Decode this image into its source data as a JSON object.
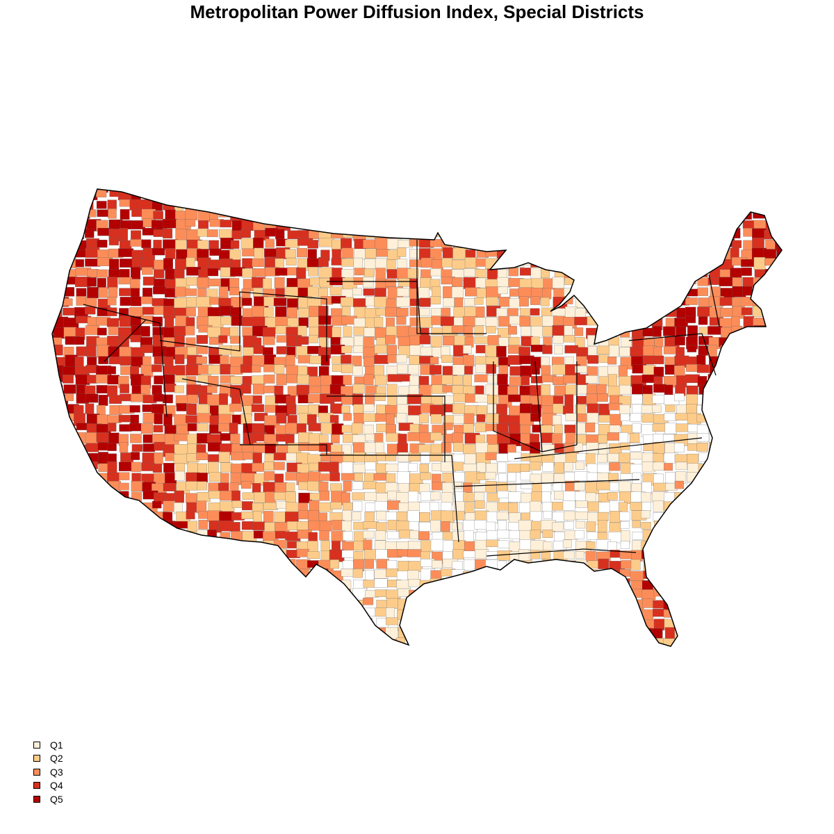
{
  "title": "Metropolitan Power Diffusion Index, Special Districts",
  "legend": {
    "items": [
      {
        "label": "Q1",
        "color": "#fef0d9"
      },
      {
        "label": "Q2",
        "color": "#fdcc8a"
      },
      {
        "label": "Q3",
        "color": "#fc8d59"
      },
      {
        "label": "Q4",
        "color": "#d7301f"
      },
      {
        "label": "Q5",
        "color": "#b30000"
      }
    ]
  },
  "map": {
    "region": "Contiguous United States",
    "unit": "county",
    "boundary_color": "#000000",
    "no_data_color": "#ffffff"
  }
}
